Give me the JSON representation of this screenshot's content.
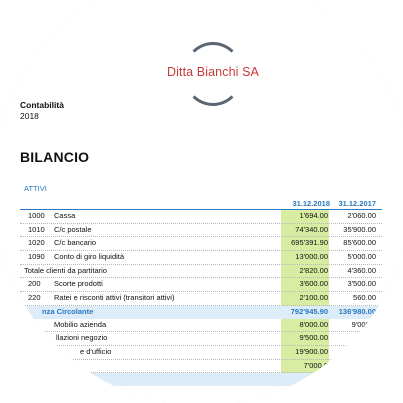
{
  "logo": {
    "company_name": "Ditta Bianchi SA"
  },
  "header": {
    "department": "Contabilità",
    "year": "2018"
  },
  "title": "BILANCIO",
  "section": "ATTIVI",
  "columns": [
    "31.12.2018",
    "31.12.2017"
  ],
  "rows": [
    {
      "code": "1000",
      "desc": "Cassa",
      "v1": "1'694.00",
      "v2": "2'060.00"
    },
    {
      "code": "1010",
      "desc": "C/c postale",
      "v1": "74'340.00",
      "v2": "35'900.00"
    },
    {
      "code": "1020",
      "desc": "C/c bancario",
      "v1": "695'391.90",
      "v2": "85'600.00"
    },
    {
      "code": "1090",
      "desc": "Conto di giro liquidità",
      "v1": "13'000.00",
      "v2": "5'000.00"
    },
    {
      "code": "",
      "desc": "Totale clienti da partitario",
      "v1": "2'820.00",
      "v2": "4'360.00"
    },
    {
      "code": "200",
      "desc": "Scorte prodotti",
      "v1": "3'600.00",
      "v2": "3'500.00"
    },
    {
      "code": "220",
      "desc": "Ratei e risconti attivi (transitori attivi)",
      "v1": "2'100.00",
      "v2": "560.00"
    },
    {
      "code": "",
      "desc": "nza Circolante",
      "v1": "792'945.90",
      "v2": "136'980.00"
    },
    {
      "code": "",
      "desc": "Mobilio azienda",
      "v1": "8'000.00",
      "v2": "9'000.0"
    },
    {
      "code": "",
      "desc": "llazioni negozio",
      "v1": "9'500.00",
      "v2": "12'50"
    },
    {
      "code": "",
      "desc": "e d'ufficio",
      "v1": "19'900.00",
      "v2": "2"
    },
    {
      "code": "",
      "desc": "",
      "v1": "7'000.0",
      "v2": ""
    },
    {
      "code": "",
      "desc": "",
      "v1": "44'",
      "v2": ""
    }
  ]
}
